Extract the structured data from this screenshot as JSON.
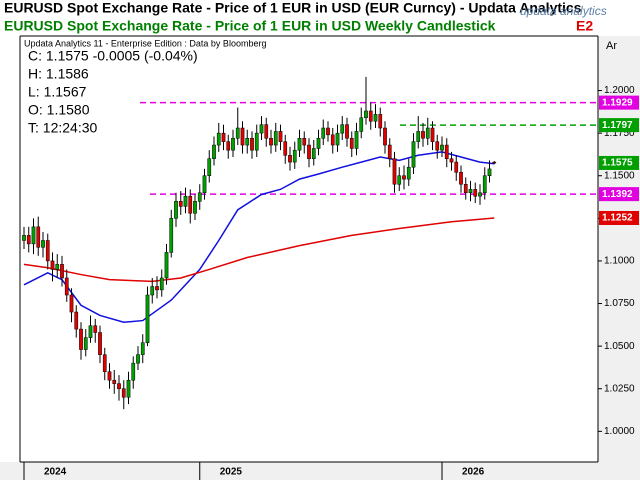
{
  "chart_data": {
    "type": "candlestick",
    "window_title": "EURUSD Spot Exchange Rate - Price of 1 EUR in USD (EUR Curncy)  -  Updata Analytics",
    "title": "EURUSD Spot Exchange Rate - Price of 1 EUR in USD Weekly Candlestick",
    "title_overflow": "E2",
    "subtitle": "Updata Analytics 11 - Enterprise Edition : Data by Bloomberg",
    "logo_text": "updata analytics",
    "y_axis_label": "Ar",
    "readout": [
      "C: 1.1575  -0.0005 (-0.04%)",
      "H: 1.1586",
      "L: 1.1567",
      "O: 1.1580",
      "T: 12:24:30"
    ],
    "up_color": "#00a000",
    "down_color": "#e00000",
    "categories": [
      "2024",
      null,
      null,
      null,
      null,
      null,
      null,
      null,
      null,
      null,
      null,
      null,
      null,
      null,
      null,
      null,
      null,
      null,
      null,
      null,
      null,
      null,
      null,
      null,
      null,
      null,
      null,
      null,
      null,
      null,
      null,
      null,
      null,
      null,
      null,
      null,
      null,
      "2025",
      null,
      null,
      null,
      null,
      null,
      null,
      null,
      null,
      null,
      null,
      null,
      null,
      null,
      null,
      null,
      null,
      null,
      null,
      null,
      null,
      null,
      null,
      null,
      null,
      null,
      null,
      null,
      null,
      null,
      null,
      null,
      null,
      null,
      null,
      null,
      null,
      null,
      null,
      null,
      null,
      null,
      null,
      null,
      null,
      null,
      null,
      null,
      null,
      null,
      null,
      "2026",
      null,
      null,
      null,
      null,
      null,
      null,
      null,
      null,
      null,
      null,
      null
    ],
    "open": [
      1.112,
      1.115,
      1.11,
      1.12,
      1.108,
      1.112,
      1.1,
      1.095,
      1.098,
      1.09,
      1.08,
      1.07,
      1.06,
      1.048,
      1.055,
      1.062,
      1.058,
      1.045,
      1.035,
      1.03,
      1.028,
      1.025,
      1.02,
      1.03,
      1.04,
      1.045,
      1.052,
      1.08,
      1.085,
      1.083,
      1.09,
      1.105,
      1.125,
      1.135,
      1.132,
      1.138,
      1.128,
      1.135,
      1.14,
      1.15,
      1.16,
      1.168,
      1.175,
      1.17,
      1.165,
      1.172,
      1.178,
      1.168,
      1.172,
      1.165,
      1.175,
      1.18,
      1.172,
      1.168,
      1.176,
      1.17,
      1.162,
      1.158,
      1.165,
      1.172,
      1.168,
      1.16,
      1.166,
      1.172,
      1.178,
      1.174,
      1.168,
      1.175,
      1.18,
      1.172,
      1.166,
      1.176,
      1.184,
      1.188,
      1.182,
      1.186,
      1.178,
      1.168,
      1.16,
      1.145,
      1.15,
      1.148,
      1.155,
      1.17,
      1.176,
      1.172,
      1.178,
      1.17,
      1.165,
      1.168,
      1.16,
      1.158,
      1.152,
      1.145,
      1.14,
      1.142,
      1.138,
      1.14,
      1.15,
      1.158
    ],
    "high": [
      1.12,
      1.12,
      1.125,
      1.126,
      1.117,
      1.116,
      1.105,
      1.104,
      1.103,
      1.095,
      1.084,
      1.074,
      1.064,
      1.06,
      1.068,
      1.066,
      1.062,
      1.049,
      1.04,
      1.036,
      1.033,
      1.03,
      1.035,
      1.044,
      1.05,
      1.057,
      1.085,
      1.09,
      1.091,
      1.095,
      1.11,
      1.13,
      1.14,
      1.141,
      1.143,
      1.142,
      1.139,
      1.145,
      1.154,
      1.165,
      1.173,
      1.181,
      1.18,
      1.174,
      1.177,
      1.19,
      1.182,
      1.177,
      1.176,
      1.18,
      1.185,
      1.184,
      1.177,
      1.181,
      1.18,
      1.174,
      1.167,
      1.17,
      1.177,
      1.176,
      1.172,
      1.171,
      1.177,
      1.183,
      1.182,
      1.178,
      1.18,
      1.185,
      1.184,
      1.176,
      1.181,
      1.19,
      1.208,
      1.193,
      1.192,
      1.19,
      1.182,
      1.172,
      1.164,
      1.155,
      1.156,
      1.16,
      1.175,
      1.185,
      1.181,
      1.184,
      1.182,
      1.174,
      1.173,
      1.172,
      1.164,
      1.162,
      1.156,
      1.149,
      1.147,
      1.146,
      1.145,
      1.155,
      1.159,
      1.1586
    ],
    "low": [
      1.107,
      1.105,
      1.104,
      1.103,
      1.102,
      1.095,
      1.088,
      1.09,
      1.085,
      1.076,
      1.064,
      1.055,
      1.042,
      1.044,
      1.052,
      1.052,
      1.04,
      1.03,
      1.025,
      1.022,
      1.018,
      1.013,
      1.016,
      1.025,
      1.036,
      1.04,
      1.05,
      1.075,
      1.078,
      1.079,
      1.086,
      1.102,
      1.12,
      1.127,
      1.128,
      1.122,
      1.124,
      1.13,
      1.136,
      1.146,
      1.156,
      1.164,
      1.165,
      1.16,
      1.161,
      1.168,
      1.163,
      1.163,
      1.16,
      1.161,
      1.171,
      1.167,
      1.163,
      1.164,
      1.165,
      1.157,
      1.153,
      1.154,
      1.161,
      1.163,
      1.155,
      1.156,
      1.162,
      1.168,
      1.17,
      1.163,
      1.164,
      1.171,
      1.167,
      1.161,
      1.162,
      1.172,
      1.18,
      1.177,
      1.178,
      1.173,
      1.163,
      1.155,
      1.14,
      1.141,
      1.142,
      1.144,
      1.151,
      1.166,
      1.167,
      1.168,
      1.165,
      1.16,
      1.161,
      1.155,
      1.153,
      1.147,
      1.14,
      1.136,
      1.135,
      1.134,
      1.133,
      1.136,
      1.146,
      1.1567
    ],
    "close": [
      1.115,
      1.11,
      1.12,
      1.108,
      1.112,
      1.1,
      1.095,
      1.098,
      1.09,
      1.08,
      1.07,
      1.06,
      1.048,
      1.055,
      1.062,
      1.058,
      1.045,
      1.035,
      1.03,
      1.028,
      1.025,
      1.02,
      1.03,
      1.04,
      1.045,
      1.052,
      1.08,
      1.085,
      1.083,
      1.09,
      1.105,
      1.125,
      1.135,
      1.132,
      1.138,
      1.128,
      1.135,
      1.14,
      1.15,
      1.16,
      1.168,
      1.175,
      1.17,
      1.165,
      1.172,
      1.178,
      1.168,
      1.172,
      1.165,
      1.175,
      1.18,
      1.172,
      1.168,
      1.176,
      1.17,
      1.162,
      1.158,
      1.165,
      1.172,
      1.168,
      1.16,
      1.166,
      1.172,
      1.178,
      1.174,
      1.168,
      1.175,
      1.18,
      1.172,
      1.166,
      1.176,
      1.184,
      1.188,
      1.182,
      1.186,
      1.178,
      1.168,
      1.16,
      1.145,
      1.15,
      1.148,
      1.155,
      1.17,
      1.176,
      1.172,
      1.178,
      1.17,
      1.165,
      1.168,
      1.16,
      1.158,
      1.152,
      1.145,
      1.14,
      1.142,
      1.138,
      1.14,
      1.15,
      1.154,
      1.1575
    ],
    "overlays": [
      {
        "color": "#1010e0",
        "x": [
          0,
          5,
          8,
          12,
          16,
          21,
          25,
          31,
          37,
          41,
          45,
          50,
          54,
          58,
          62,
          67,
          71,
          75,
          79,
          83,
          88,
          92,
          96,
          99
        ],
        "values": [
          1.086,
          1.093,
          1.089,
          1.074,
          1.068,
          1.064,
          1.065,
          1.077,
          1.095,
          1.112,
          1.13,
          1.139,
          1.142,
          1.148,
          1.151,
          1.155,
          1.158,
          1.161,
          1.159,
          1.162,
          1.164,
          1.161,
          1.158,
          1.157
        ]
      },
      {
        "color": "#e00000",
        "x": [
          0,
          5,
          12,
          18,
          27,
          33,
          39,
          47,
          58,
          69,
          79,
          90,
          99
        ],
        "values": [
          1.098,
          1.096,
          1.092,
          1.089,
          1.088,
          1.09,
          1.095,
          1.102,
          1.109,
          1.115,
          1.119,
          1.123,
          1.1252
        ]
      }
    ],
    "levels": [
      {
        "value": 1.1929,
        "color": "#e000e0"
      },
      {
        "value": 1.1797,
        "color": "#00a000"
      },
      {
        "value": 1.1392,
        "color": "#e000e0"
      }
    ],
    "ylim": [
      0.982,
      1.232
    ],
    "yticks": [
      {
        "value": 1,
        "label": "1.0000"
      },
      {
        "value": 1.025,
        "label": "1.0250"
      },
      {
        "value": 1.05,
        "label": "1.0500"
      },
      {
        "value": 1.075,
        "label": "1.0750"
      },
      {
        "value": 1.1,
        "label": "1.1000"
      },
      {
        "value": 1.125,
        "label": "1.1250"
      },
      {
        "value": 1.15,
        "label": "1.1500"
      },
      {
        "value": 1.175,
        "label": "1.1750"
      },
      {
        "value": 1.2,
        "label": "1.2000"
      }
    ]
  }
}
